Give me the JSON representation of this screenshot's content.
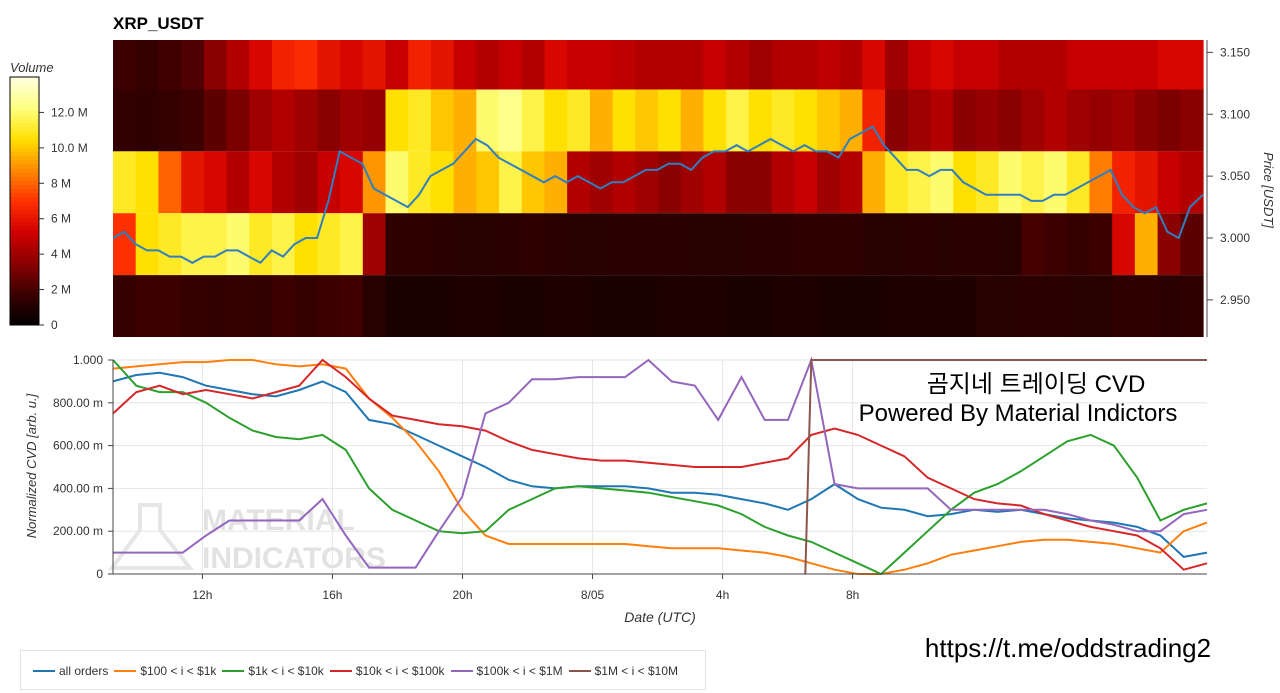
{
  "chart_data": [
    {
      "type": "heatmap",
      "title": "XRP_USDT",
      "ylabel": "Price [USDT]",
      "ylim": [
        2.92,
        3.16
      ],
      "y_ticks": [
        "2.950",
        "3.000",
        "3.050",
        "3.100",
        "3.150"
      ],
      "y_tick_values": [
        2.95,
        3.0,
        3.05,
        3.1,
        3.15
      ],
      "colorbar": {
        "label": "Volume",
        "ticks": [
          "0",
          "2 M",
          "4 M",
          "6 M",
          "8 M",
          "10.0 M",
          "12.0 M"
        ],
        "tick_values": [
          0,
          2,
          4,
          6,
          8,
          10,
          12
        ],
        "max": 14
      },
      "price_bands": [
        {
          "low": 3.12,
          "high": 3.16
        },
        {
          "low": 3.07,
          "high": 3.12
        },
        {
          "low": 3.02,
          "high": 3.07
        },
        {
          "low": 2.97,
          "high": 3.02
        },
        {
          "low": 2.92,
          "high": 2.97
        }
      ],
      "band_levels": [
        [
          1.8,
          1.6,
          1.9,
          2.2,
          3.5,
          4.5,
          5.5,
          6.5,
          6.8,
          6.0,
          5.5,
          6.0,
          5.0,
          6.5,
          6.0,
          5.0,
          4.5,
          5.0,
          4.5,
          5.5,
          5.0,
          5.0,
          4.8,
          4.5,
          4.5,
          4.5,
          5.0,
          4.5,
          4.0,
          4.5,
          4.5,
          4.8,
          4.5,
          5.5,
          4.0,
          5.0,
          5.5,
          5.0,
          5.0,
          4.5,
          4.5,
          4.5,
          5.0,
          5.0,
          5.0,
          5.0,
          5.5,
          5.5
        ],
        [
          1.5,
          1.4,
          1.6,
          1.8,
          2.5,
          3.2,
          4.0,
          4.5,
          4.0,
          3.5,
          4.0,
          3.8,
          10.5,
          11.0,
          10.0,
          9.5,
          12.0,
          12.5,
          11.5,
          10.5,
          11.0,
          9.5,
          10.5,
          10.0,
          10.5,
          9.5,
          10.5,
          11.5,
          10.5,
          11.0,
          10.5,
          10.0,
          9.5,
          6.5,
          3.5,
          4.0,
          4.5,
          3.5,
          3.8,
          3.5,
          4.0,
          4.5,
          4.0,
          3.8,
          4.0,
          3.5,
          3.2,
          3.5
        ],
        [
          11.0,
          10.5,
          8.0,
          6.0,
          5.5,
          4.5,
          5.5,
          4.5,
          4.0,
          5.0,
          5.5,
          9.0,
          12.0,
          11.0,
          10.5,
          9.5,
          10.0,
          11.5,
          10.0,
          9.5,
          4.5,
          4.0,
          4.5,
          4.0,
          3.5,
          4.0,
          4.5,
          3.5,
          3.5,
          4.5,
          5.0,
          4.0,
          4.5,
          9.5,
          11.0,
          11.5,
          12.0,
          10.5,
          11.0,
          12.0,
          11.5,
          12.0,
          11.0,
          8.5,
          6.5,
          6.0,
          5.0,
          4.5
        ],
        [
          7.0,
          10.5,
          11.0,
          11.5,
          11.5,
          12.0,
          11.0,
          11.5,
          10.5,
          11.0,
          11.5,
          4.0,
          1.4,
          1.4,
          1.3,
          1.2,
          1.2,
          1.3,
          1.4,
          1.3,
          1.2,
          1.2,
          1.3,
          1.3,
          1.3,
          1.2,
          1.2,
          1.2,
          1.3,
          1.3,
          1.4,
          1.4,
          1.4,
          1.2,
          1.2,
          1.3,
          1.2,
          1.3,
          1.3,
          1.2,
          2.0,
          1.8,
          1.6,
          1.8,
          5.5,
          9.5,
          3.5,
          2.5
        ],
        [
          1.6,
          1.8,
          1.8,
          1.6,
          1.5,
          1.6,
          1.5,
          1.8,
          1.6,
          1.8,
          1.9,
          1.2,
          0.8,
          0.8,
          0.8,
          0.9,
          0.9,
          0.8,
          0.8,
          0.9,
          0.9,
          0.8,
          0.8,
          0.8,
          0.9,
          0.9,
          0.9,
          0.8,
          0.8,
          0.9,
          0.9,
          0.8,
          0.8,
          0.8,
          0.9,
          0.9,
          1.0,
          1.0,
          1.2,
          1.2,
          1.3,
          1.3,
          1.2,
          1.2,
          1.4,
          1.4,
          1.3,
          1.4
        ]
      ],
      "price_line": {
        "x": [
          0,
          0.35,
          0.7,
          1.05,
          1.4,
          1.75,
          2.1,
          2.45,
          2.8,
          3.15,
          3.5,
          3.85,
          4.2,
          4.55,
          4.9,
          5.25,
          5.6,
          5.95,
          6.3,
          6.65,
          7.0,
          7.35,
          7.7,
          8.05,
          8.4,
          8.75,
          9.1,
          9.45,
          9.8,
          10.15,
          10.5,
          10.85,
          11.2,
          11.55,
          11.9,
          12.25,
          12.6,
          12.95,
          13.3,
          13.65,
          14.0,
          14.35,
          14.7,
          15.05,
          15.4,
          15.75,
          16.1,
          16.45,
          16.8,
          17.15,
          17.5,
          17.85,
          18.2,
          18.55,
          18.9,
          19.25,
          19.6,
          19.95,
          20.3,
          20.65,
          21.0,
          21.35,
          21.7,
          22.05,
          22.4,
          22.75,
          23.1,
          23.45,
          23.8,
          24.15,
          24.5,
          24.85,
          25.2,
          25.55,
          25.9,
          26.25,
          26.6,
          26.95,
          27.3,
          27.65,
          28.0,
          28.35,
          28.7,
          29.05,
          29.4,
          29.75,
          30.1,
          30.45,
          30.8,
          31.15,
          31.5,
          31.85,
          32.2,
          32.55,
          32.9,
          33.25,
          33.65
        ],
        "y": [
          3.0,
          3.005,
          2.995,
          2.99,
          2.99,
          2.985,
          2.985,
          2.98,
          2.985,
          2.985,
          2.99,
          2.99,
          2.985,
          2.98,
          2.99,
          2.985,
          2.995,
          3.0,
          3.0,
          3.03,
          3.07,
          3.065,
          3.06,
          3.04,
          3.035,
          3.03,
          3.025,
          3.035,
          3.05,
          3.055,
          3.06,
          3.07,
          3.08,
          3.075,
          3.065,
          3.06,
          3.055,
          3.05,
          3.045,
          3.05,
          3.045,
          3.05,
          3.045,
          3.04,
          3.045,
          3.045,
          3.05,
          3.055,
          3.055,
          3.06,
          3.06,
          3.055,
          3.065,
          3.07,
          3.07,
          3.075,
          3.07,
          3.075,
          3.08,
          3.075,
          3.07,
          3.075,
          3.07,
          3.07,
          3.065,
          3.08,
          3.085,
          3.09,
          3.075,
          3.065,
          3.055,
          3.055,
          3.05,
          3.055,
          3.055,
          3.045,
          3.04,
          3.035,
          3.035,
          3.035,
          3.035,
          3.03,
          3.03,
          3.035,
          3.035,
          3.04,
          3.045,
          3.05,
          3.055,
          3.035,
          3.025,
          3.02,
          3.025,
          3.005,
          3.0,
          3.025,
          3.035
        ]
      }
    },
    {
      "type": "line",
      "xlabel": "Date (UTC)",
      "ylabel": "Normalized CVD [arb. u.]",
      "xlim": [
        0,
        33.65
      ],
      "ylim": [
        0,
        1.0
      ],
      "x_ticks": [
        "12h",
        "16h",
        "20h",
        "8/05",
        "4h",
        "8h"
      ],
      "x_tick_values": [
        2.75,
        6.75,
        10.75,
        14.75,
        18.75,
        22.75
      ],
      "y_ticks": [
        "0",
        "200.00 m",
        "400.00 m",
        "600.00 m",
        "800.00 m",
        "1.000"
      ],
      "y_tick_values": [
        0,
        0.2,
        0.4,
        0.6,
        0.8,
        1.0
      ],
      "grid": true,
      "legend_placement": "bottom-left, outside",
      "x": [
        0,
        0.5,
        1.0,
        1.5,
        2.0,
        2.5,
        3.0,
        3.5,
        4.0,
        4.5,
        5.0,
        5.5,
        6.0,
        6.5,
        7.0,
        7.5,
        8.0,
        8.5,
        9.0,
        9.5,
        10.0,
        10.5,
        11.0,
        11.5,
        12.0,
        12.5,
        13.0,
        13.5,
        14.0,
        14.5,
        15.0,
        15.5,
        16.0,
        16.5,
        17.0,
        17.5,
        18.0,
        18.5,
        19.0,
        19.5,
        20.0,
        20.5,
        21.0,
        21.5,
        22.0,
        22.5,
        23.0,
        23.5
      ],
      "series": [
        {
          "name": "all orders",
          "color": "#1f77b4",
          "values": [
            0.9,
            0.93,
            0.94,
            0.92,
            0.88,
            0.86,
            0.84,
            0.83,
            0.86,
            0.9,
            0.85,
            0.72,
            0.7,
            0.65,
            0.6,
            0.55,
            0.5,
            0.44,
            0.41,
            0.4,
            0.41,
            0.41,
            0.41,
            0.4,
            0.38,
            0.38,
            0.37,
            0.35,
            0.33,
            0.3,
            0.35,
            0.42,
            0.35,
            0.31,
            0.3,
            0.27,
            0.28,
            0.3,
            0.29,
            0.3,
            0.28,
            0.26,
            0.25,
            0.24,
            0.22,
            0.18,
            0.08,
            0.1
          ]
        },
        {
          "name": "$100 < i < $1k",
          "color": "#ff7f0e",
          "values": [
            0.96,
            0.97,
            0.98,
            0.99,
            0.99,
            1.0,
            1.0,
            0.98,
            0.97,
            0.98,
            0.96,
            0.82,
            0.73,
            0.62,
            0.48,
            0.3,
            0.18,
            0.14,
            0.14,
            0.14,
            0.14,
            0.14,
            0.14,
            0.13,
            0.12,
            0.12,
            0.12,
            0.11,
            0.1,
            0.08,
            0.05,
            0.02,
            0.0,
            0.0,
            0.02,
            0.05,
            0.09,
            0.11,
            0.13,
            0.15,
            0.16,
            0.16,
            0.15,
            0.14,
            0.12,
            0.1,
            0.2,
            0.24
          ]
        },
        {
          "name": "$1k < i < $10k",
          "color": "#2ca02c",
          "values": [
            1.0,
            0.88,
            0.85,
            0.85,
            0.8,
            0.73,
            0.67,
            0.64,
            0.63,
            0.65,
            0.58,
            0.4,
            0.3,
            0.25,
            0.2,
            0.19,
            0.2,
            0.3,
            0.35,
            0.4,
            0.41,
            0.4,
            0.39,
            0.38,
            0.36,
            0.34,
            0.32,
            0.28,
            0.22,
            0.18,
            0.15,
            0.1,
            0.05,
            0.0,
            0.1,
            0.2,
            0.3,
            0.38,
            0.42,
            0.48,
            0.55,
            0.62,
            0.65,
            0.6,
            0.45,
            0.25,
            0.3,
            0.33
          ]
        },
        {
          "name": "$10k < i < $100k",
          "color": "#d62728",
          "values": [
            0.75,
            0.85,
            0.88,
            0.84,
            0.86,
            0.84,
            0.82,
            0.85,
            0.88,
            1.0,
            0.92,
            0.82,
            0.74,
            0.72,
            0.7,
            0.69,
            0.67,
            0.62,
            0.58,
            0.56,
            0.54,
            0.53,
            0.53,
            0.52,
            0.51,
            0.5,
            0.5,
            0.5,
            0.52,
            0.54,
            0.65,
            0.68,
            0.65,
            0.6,
            0.55,
            0.45,
            0.4,
            0.35,
            0.33,
            0.32,
            0.28,
            0.25,
            0.22,
            0.2,
            0.18,
            0.12,
            0.02,
            0.05
          ]
        },
        {
          "name": "$100k < i < $1M",
          "color": "#9467bd",
          "values": [
            0.1,
            0.1,
            0.1,
            0.1,
            0.18,
            0.25,
            0.25,
            0.25,
            0.25,
            0.35,
            0.18,
            0.03,
            0.03,
            0.03,
            0.2,
            0.36,
            0.75,
            0.8,
            0.91,
            0.91,
            0.92,
            0.92,
            0.92,
            1.0,
            0.9,
            0.88,
            0.72,
            0.92,
            0.72,
            0.72,
            1.0,
            0.42,
            0.4,
            0.4,
            0.4,
            0.4,
            0.3,
            0.3,
            0.3,
            0.3,
            0.3,
            0.28,
            0.25,
            0.23,
            0.2,
            0.2,
            0.28,
            0.3
          ]
        },
        {
          "name": "$1M < i < $10M",
          "color": "#8c564b",
          "values": [
            null,
            null,
            null,
            null,
            null,
            null,
            null,
            null,
            null,
            null,
            null,
            null,
            null,
            null,
            null,
            null,
            null,
            null,
            null,
            null,
            null,
            null,
            null,
            null,
            null,
            null,
            null,
            null,
            null,
            null,
            1.0,
            1.0,
            1.0,
            1.0,
            1.0,
            1.0,
            1.0,
            1.0,
            1.0,
            1.0,
            1.0,
            1.0,
            1.0,
            1.0,
            1.0,
            1.0,
            1.0,
            1.0
          ]
        }
      ]
    }
  ],
  "overlay": {
    "line1": "곰지네 트레이딩 CVD",
    "line2": "Powered By Material Indictors",
    "link": "https://t.me/oddstrading2",
    "watermark_top": "MATERIAL",
    "watermark_bottom": "INDICATORS"
  },
  "colors": {
    "colormap": [
      "#000000",
      "#3a0000",
      "#8b0000",
      "#d00000",
      "#ff3000",
      "#ff8a00",
      "#ffe000",
      "#ffff80",
      "#ffffe0"
    ]
  }
}
